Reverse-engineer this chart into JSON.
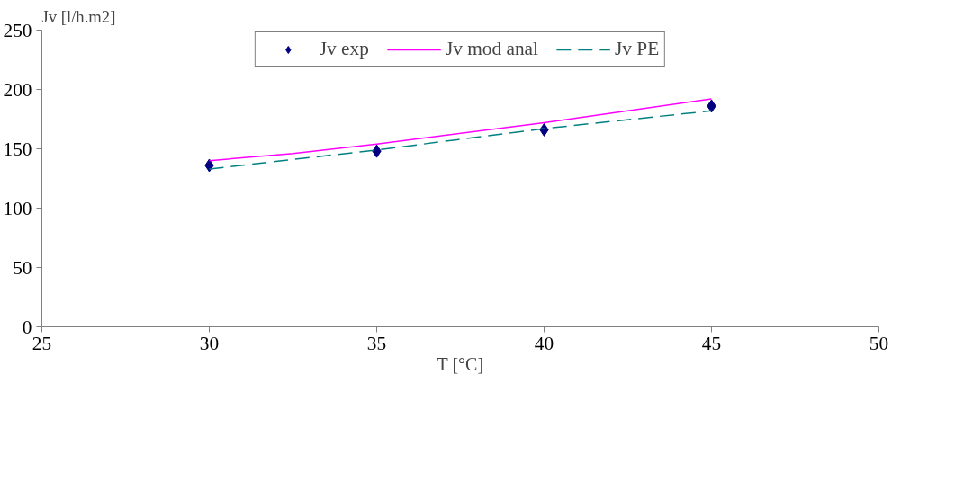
{
  "chart_data": {
    "type": "line",
    "xlabel": "T [°C]",
    "ylabel": "Jv [l/h.m2]",
    "xlim": [
      25,
      50
    ],
    "xticks": [
      25,
      30,
      35,
      40,
      45,
      50
    ],
    "ylim": [
      0,
      250
    ],
    "yticks": [
      0,
      50,
      100,
      150,
      200,
      250
    ],
    "grid": false,
    "legend": "top",
    "series": [
      {
        "name": "Jv exp",
        "type": "scatter",
        "marker": "diamond",
        "color": "#000080",
        "x": [
          30,
          35,
          40,
          45
        ],
        "values": [
          136,
          148,
          166,
          186
        ]
      },
      {
        "name": "Jv mod anal",
        "line_style": "solid",
        "color": "#ff00ff",
        "x": [
          30,
          32.5,
          35,
          40,
          45
        ],
        "values": [
          140,
          146,
          154,
          172,
          192
        ]
      },
      {
        "name": "Jv PE",
        "line_style": "dashed",
        "color": "#008080",
        "x": [
          30,
          35,
          40,
          45
        ],
        "values": [
          133,
          149,
          167,
          182
        ]
      }
    ]
  }
}
